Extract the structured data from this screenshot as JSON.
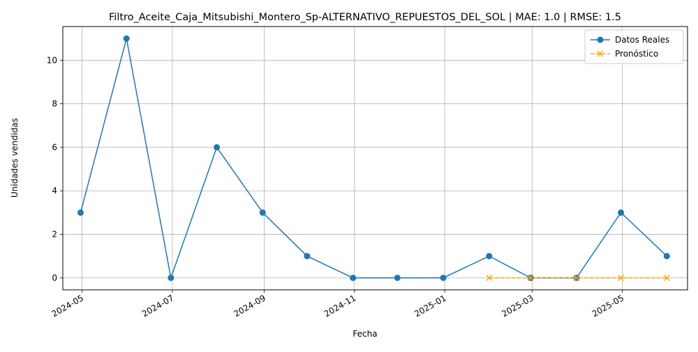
{
  "chart_data": {
    "type": "line",
    "title": "Filtro_Aceite_Caja_Mitsubishi_Montero_Sp-ALTERNATIVO_REPUESTOS_DEL_SOL | MAE: 1.0 | RMSE: 1.5",
    "xlabel": "Fecha",
    "ylabel": "Unidades vendidas",
    "x_ticks": [
      "2024-05",
      "2024-07",
      "2024-09",
      "2024-11",
      "2025-01",
      "2025-03",
      "2025-05"
    ],
    "y_ticks": [
      0,
      2,
      4,
      6,
      8,
      10
    ],
    "xlim": [
      "2024-04-18",
      "2025-06-14"
    ],
    "ylim": [
      -0.55,
      11.55
    ],
    "grid": true,
    "legend_position": "top-right",
    "series": [
      {
        "name": "Datos Reales",
        "color": "#1f77b4",
        "marker": "circle",
        "linestyle": "solid",
        "x": [
          "2024-04-30",
          "2024-05-31",
          "2024-06-30",
          "2024-07-31",
          "2024-08-31",
          "2024-09-30",
          "2024-10-31",
          "2024-11-30",
          "2024-12-31",
          "2025-01-31",
          "2025-02-28",
          "2025-03-31",
          "2025-04-30",
          "2025-05-31"
        ],
        "values": [
          3,
          11,
          0,
          6,
          3,
          1,
          0,
          0,
          0,
          1,
          0,
          0,
          3,
          1
        ]
      },
      {
        "name": "Pronóstico",
        "color": "#ffa500",
        "marker": "x",
        "linestyle": "dashed",
        "x": [
          "2025-01-31",
          "2025-02-28",
          "2025-03-31",
          "2025-04-30",
          "2025-05-31"
        ],
        "values": [
          0,
          0,
          0,
          0,
          0
        ]
      }
    ]
  }
}
